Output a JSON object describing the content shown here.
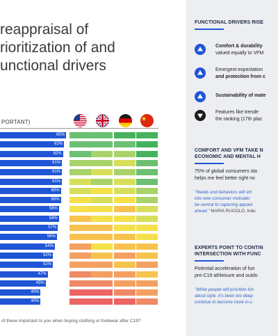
{
  "left": {
    "headline": [
      "reappraisal of",
      "rioritization of and",
      "unctional drivers"
    ],
    "column_header": "PORTANT)",
    "flags": [
      {
        "name": "us-flag-icon",
        "country": "US"
      },
      {
        "name": "uk-flag-icon",
        "country": "UK"
      },
      {
        "name": "germany-flag-icon",
        "country": "DE"
      },
      {
        "name": "china-flag-icon",
        "country": "CN"
      }
    ],
    "footnote": "of these important to you when buying clothing or footwear after C19?",
    "colors": {
      "bar": "#1f55d6",
      "heat": {
        "dark_green": "#47b25e",
        "green": "#6cc072",
        "light_green": "#a8d26a",
        "yellow_green": "#d7df5a",
        "yellow": "#f4e04a",
        "light_orange": "#f7c24e",
        "orange": "#f4a060",
        "salmon": "#f08a66",
        "red": "#ec6464"
      }
    }
  },
  "chart_data": {
    "type": "bar",
    "title": "",
    "xlabel": "",
    "ylabel": "",
    "values": [
      65,
      63,
      62,
      61,
      61,
      61,
      60,
      60,
      58,
      58,
      57,
      56,
      54,
      52,
      52,
      47,
      45,
      40,
      40
    ],
    "labels": [
      "65%",
      "63%",
      "62%",
      "61%",
      "61%",
      "61%",
      "60%",
      "60%",
      "58%",
      "58%",
      "57%",
      "56%",
      "54%",
      "52%",
      "52%",
      "47%",
      "45%",
      "40%",
      "40%"
    ],
    "heatmap_countries": [
      "US",
      "UK",
      "DE",
      "CN"
    ],
    "heatmap": [
      [
        "green",
        "green",
        "dark_green",
        "dark_green"
      ],
      [
        "green",
        "green",
        "green",
        "dark_green"
      ],
      [
        "green",
        "light_green",
        "light_green",
        "dark_green"
      ],
      [
        "light_green",
        "light_green",
        "yellow_green",
        "green"
      ],
      [
        "light_green",
        "yellow_green",
        "light_green",
        "green"
      ],
      [
        "yellow_green",
        "light_green",
        "yellow_green",
        "green"
      ],
      [
        "yellow_green",
        "yellow",
        "yellow_green",
        "light_green"
      ],
      [
        "yellow",
        "yellow_green",
        "yellow",
        "light_green"
      ],
      [
        "yellow",
        "yellow",
        "light_orange",
        "yellow_green"
      ],
      [
        "light_orange",
        "yellow",
        "yellow",
        "yellow_green"
      ],
      [
        "light_orange",
        "light_orange",
        "yellow",
        "yellow"
      ],
      [
        "light_orange",
        "light_orange",
        "light_orange",
        "yellow"
      ],
      [
        "orange",
        "yellow",
        "light_orange",
        "light_orange"
      ],
      [
        "orange",
        "light_orange",
        "orange",
        "light_orange"
      ],
      [
        "orange",
        "orange",
        "light_orange",
        "orange"
      ],
      [
        "salmon",
        "orange",
        "orange",
        "light_orange"
      ],
      [
        "salmon",
        "salmon",
        "orange",
        "orange"
      ],
      [
        "red",
        "red",
        "salmon",
        "orange"
      ],
      [
        "red",
        "red",
        "red",
        "salmon"
      ]
    ]
  },
  "right": {
    "section1": {
      "heading": "FUNCTIONAL DRIVERS RISE",
      "items": [
        {
          "icon": "up-arrow-icon",
          "bold": "Comfort & durability",
          "text_line2": "valued equally to VFM"
        },
        {
          "icon": "up-arrow-icon",
          "text_line1": "Emergent expectation",
          "text_line2": "and protection from c"
        },
        {
          "icon": "up-arrow-icon",
          "bold": "Sustainability of mate"
        },
        {
          "icon": "down-arrow-icon",
          "text_line1": "Features like trende",
          "text_line2": "the ranking (17th plac"
        }
      ]
    },
    "section2": {
      "heading_line1": "COMFORT AND VFM TAKE N",
      "heading_line2": "ECONOMIC AND MENTAL H",
      "body_line1": "75% of global consumers sta",
      "body_line2": "helps me feel better right no",
      "quote_line1": "\"Needs and behaviors will shi",
      "quote_line2": "into new consumer motivatio",
      "quote_line3": "be central to capturing appare",
      "quote_line4_italic": "ahead.\"",
      "quote_line4_author": " MARIA RUGOLO, Indu"
    },
    "section3": {
      "heading_line1": "EXPERTS POINT TO CONTIN",
      "heading_line2": "INTERSECTION WITH FUNC",
      "body_line1": "Potential acceleration of fun",
      "body_line2": "pre-C19 athleisure and outdo",
      "quote_line1": "\"While people will prioritize fun",
      "quote_line2": "about style. It's been too deep",
      "quote_line3": "continue to become more in-s"
    }
  }
}
